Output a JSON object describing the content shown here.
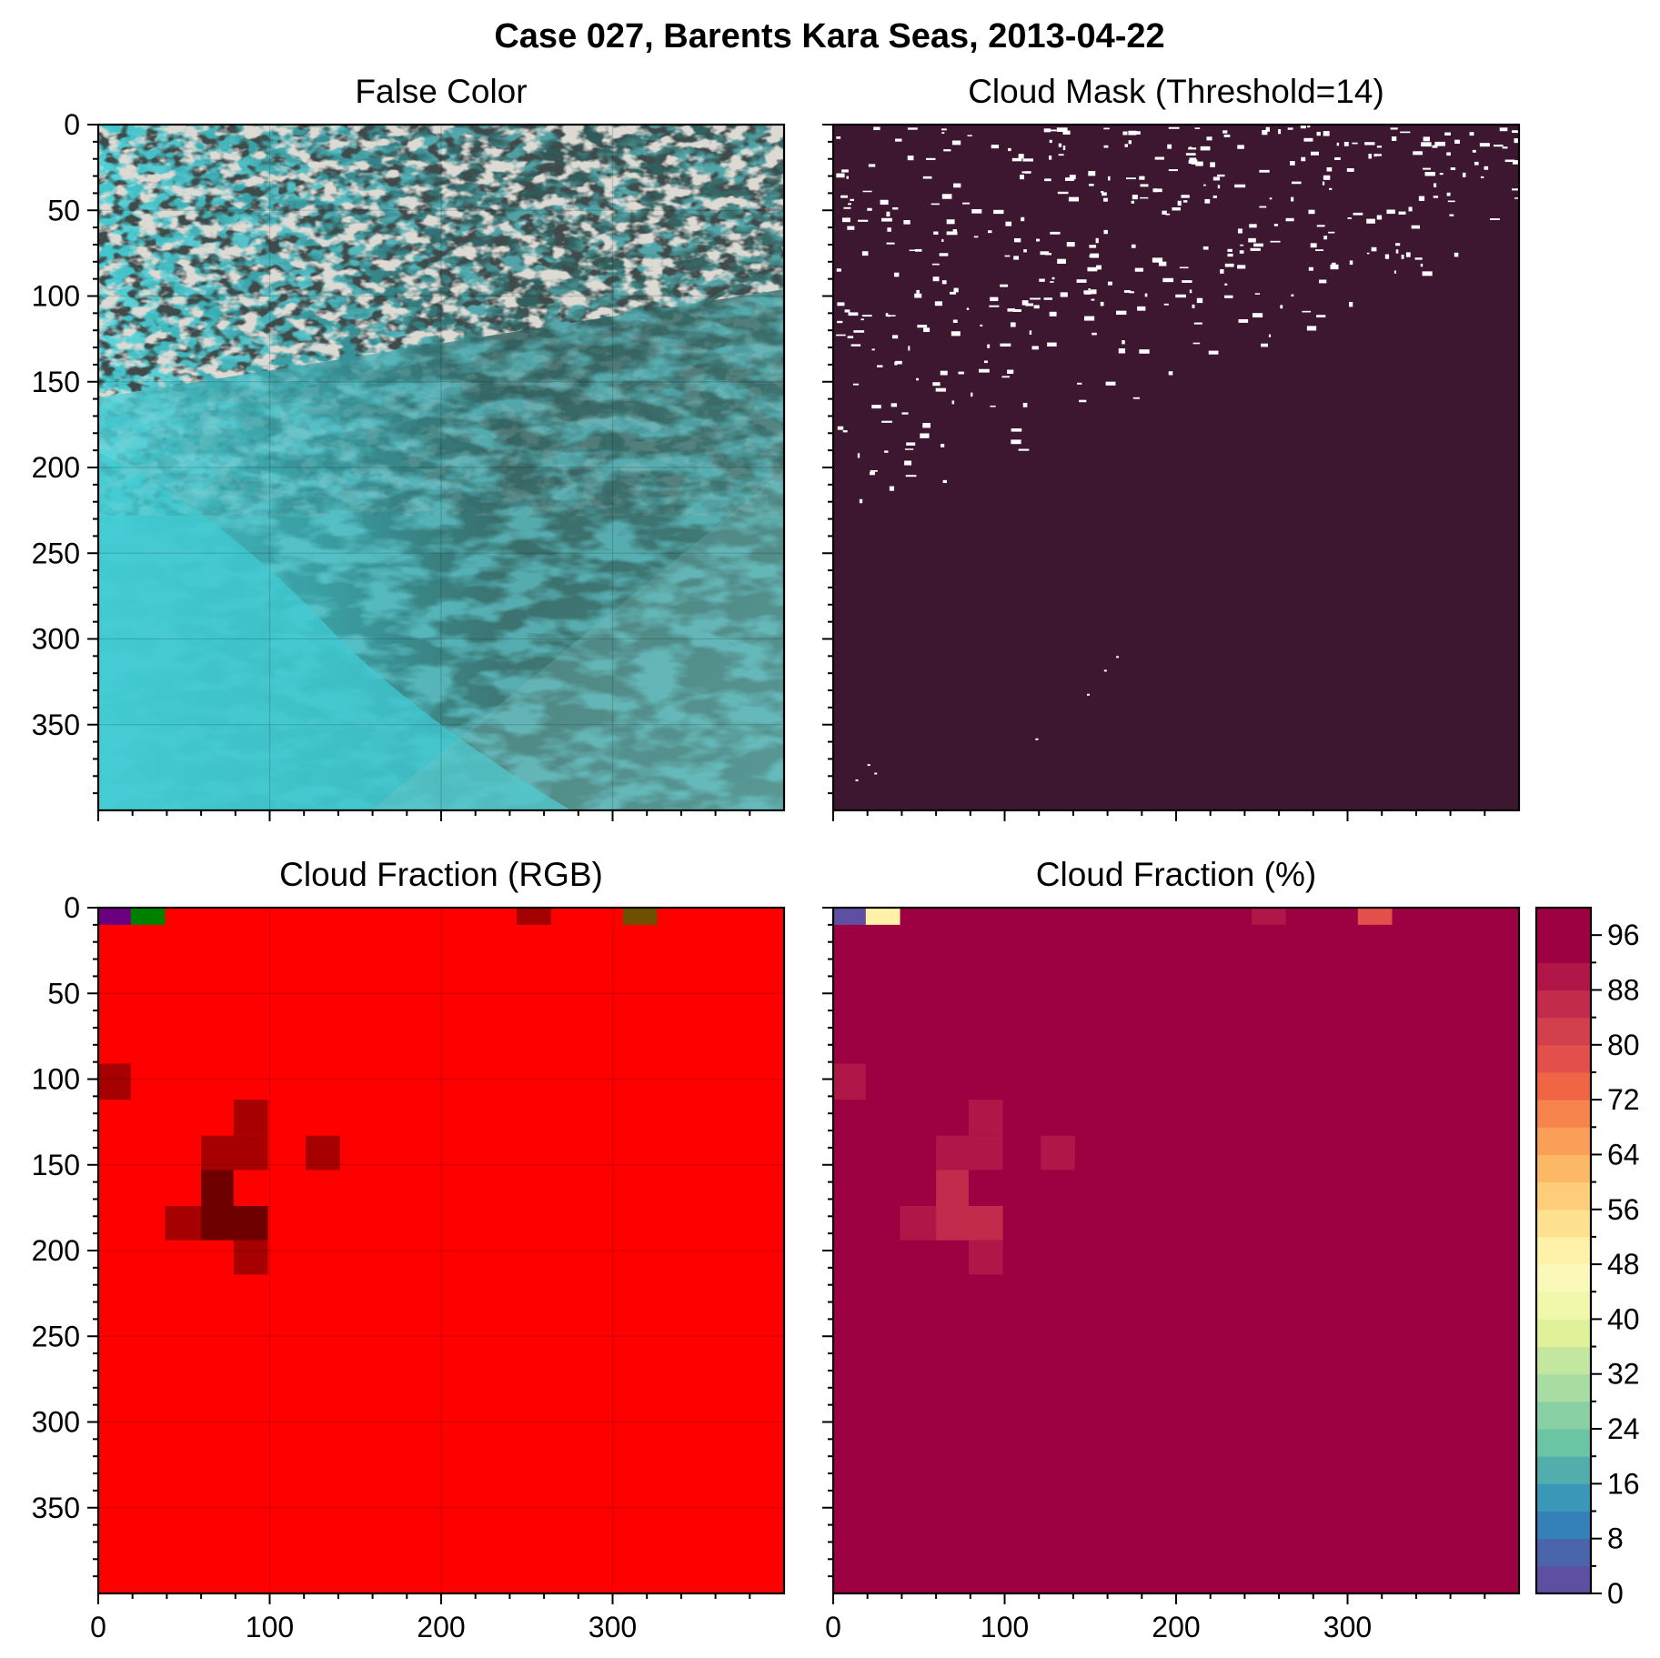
{
  "figure": {
    "title": "Case 027, Barents Kara Seas, 2013-04-22"
  },
  "chart_data": [
    {
      "type": "heatmap",
      "title": "False Color",
      "rendering": "false-color satellite image",
      "xlim": [
        0,
        400
      ],
      "ylim": [
        400,
        0
      ],
      "xticks": [
        0,
        100,
        200,
        300
      ],
      "yticks": [
        0,
        50,
        100,
        150,
        200,
        250,
        300,
        350
      ],
      "show_xtick_labels": false,
      "show_ytick_labels": true,
      "grid": true
    },
    {
      "type": "heatmap",
      "title": "Cloud Mask (Threshold=14)",
      "rendering": "binary cloud mask",
      "colors": {
        "clear": "#3d1730",
        "cloud": "#ffffff"
      },
      "xlim": [
        0,
        400
      ],
      "ylim": [
        400,
        0
      ],
      "xticks": [
        0,
        100,
        200,
        300
      ],
      "yticks": [
        0,
        50,
        100,
        150,
        200,
        250,
        300,
        350
      ],
      "show_xtick_labels": false,
      "show_ytick_labels": false,
      "grid": false
    },
    {
      "type": "heatmap",
      "title": "Cloud Fraction (RGB)",
      "rendering": "cloud fraction blocks (RGB)",
      "background_color": "#ff0000",
      "xlim": [
        0,
        400
      ],
      "ylim": [
        400,
        0
      ],
      "xticks": [
        0,
        100,
        200,
        300
      ],
      "yticks": [
        0,
        50,
        100,
        150,
        200,
        250,
        300,
        350
      ],
      "show_xtick_labels": true,
      "show_ytick_labels": true,
      "grid": true,
      "cells": [
        {
          "x0": 0,
          "x1": 19,
          "y0": 0,
          "y1": 10,
          "color": "#6a0080"
        },
        {
          "x0": 19,
          "x1": 39,
          "y0": 0,
          "y1": 10,
          "color": "#008000"
        },
        {
          "x0": 244,
          "x1": 264,
          "y0": 0,
          "y1": 10,
          "color": "#a30000"
        },
        {
          "x0": 306,
          "x1": 326,
          "y0": 0,
          "y1": 10,
          "color": "#6e5000"
        },
        {
          "x0": 0,
          "x1": 19,
          "y0": 91,
          "y1": 112,
          "color": "#a60000"
        },
        {
          "x0": 79,
          "x1": 99,
          "y0": 112,
          "y1": 133,
          "color": "#a60000"
        },
        {
          "x0": 60,
          "x1": 99,
          "y0": 133,
          "y1": 153,
          "color": "#a60000"
        },
        {
          "x0": 121,
          "x1": 141,
          "y0": 133,
          "y1": 153,
          "color": "#a60000"
        },
        {
          "x0": 60,
          "x1": 79,
          "y0": 153,
          "y1": 174,
          "color": "#6e0000"
        },
        {
          "x0": 39,
          "x1": 60,
          "y0": 174,
          "y1": 194,
          "color": "#a60000"
        },
        {
          "x0": 60,
          "x1": 99,
          "y0": 174,
          "y1": 194,
          "color": "#6e0000"
        },
        {
          "x0": 79,
          "x1": 99,
          "y0": 194,
          "y1": 214,
          "color": "#a60000"
        }
      ]
    },
    {
      "type": "heatmap",
      "title": "Cloud Fraction (%)",
      "rendering": "cloud fraction blocks (%)",
      "background_value": 100,
      "xlim": [
        0,
        400
      ],
      "ylim": [
        400,
        0
      ],
      "xticks": [
        0,
        100,
        200,
        300
      ],
      "yticks": [
        0,
        50,
        100,
        150,
        200,
        250,
        300,
        350
      ],
      "show_xtick_labels": true,
      "show_ytick_labels": false,
      "grid": false,
      "cells": [
        {
          "x0": 0,
          "x1": 19,
          "y0": 0,
          "y1": 10,
          "value": 2
        },
        {
          "x0": 19,
          "x1": 39,
          "y0": 0,
          "y1": 10,
          "value": 50
        },
        {
          "x0": 244,
          "x1": 264,
          "y0": 0,
          "y1": 10,
          "value": 89
        },
        {
          "x0": 306,
          "x1": 326,
          "y0": 0,
          "y1": 10,
          "value": 78
        },
        {
          "x0": 0,
          "x1": 19,
          "y0": 91,
          "y1": 112,
          "value": 88
        },
        {
          "x0": 79,
          "x1": 99,
          "y0": 112,
          "y1": 133,
          "value": 88
        },
        {
          "x0": 60,
          "x1": 99,
          "y0": 133,
          "y1": 153,
          "value": 88
        },
        {
          "x0": 121,
          "x1": 141,
          "y0": 133,
          "y1": 153,
          "value": 88
        },
        {
          "x0": 60,
          "x1": 79,
          "y0": 153,
          "y1": 174,
          "value": 84
        },
        {
          "x0": 39,
          "x1": 60,
          "y0": 174,
          "y1": 194,
          "value": 88
        },
        {
          "x0": 60,
          "x1": 99,
          "y0": 174,
          "y1": 194,
          "value": 84
        },
        {
          "x0": 79,
          "x1": 99,
          "y0": 194,
          "y1": 214,
          "value": 88
        }
      ],
      "colorbar": {
        "range": [
          0,
          100
        ],
        "step": 4,
        "tick_values": [
          0,
          8,
          16,
          24,
          32,
          40,
          48,
          56,
          64,
          72,
          80,
          88,
          96
        ],
        "tick_labels": [
          "0",
          "8",
          "16",
          "24",
          "32",
          "40",
          "48",
          "56",
          "64",
          "72",
          "80",
          "88",
          "96"
        ],
        "colors": [
          "#5e4fa2",
          "#4a65ac",
          "#3680ba",
          "#3b97b8",
          "#52aead",
          "#6bc4a4",
          "#89d0a4",
          "#a8dca2",
          "#c4e79f",
          "#dff299",
          "#f1f8ab",
          "#fbf9b9",
          "#fff1a8",
          "#fee290",
          "#fecd79",
          "#fdb866",
          "#fb9e57",
          "#f7844c",
          "#f06644",
          "#e34f4a",
          "#d3404d",
          "#c22b4b",
          "#b01648",
          "#9e0142",
          "#9e0142"
        ]
      }
    }
  ]
}
